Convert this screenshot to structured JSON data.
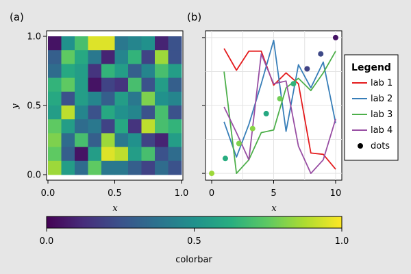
{
  "chart_data": [
    {
      "panel": "(a)",
      "type": "heatmap",
      "xlabel": "x",
      "ylabel": "y",
      "xlim": [
        0,
        1
      ],
      "ylim": [
        0,
        1
      ],
      "x_ticks": [
        "0.0",
        "0.5",
        "1.0"
      ],
      "y_ticks": [
        "0.0",
        "0.5",
        "1.0"
      ],
      "grid": false,
      "rows_top_to_bottom": [
        [
          0.05,
          0.5,
          0.7,
          0.95,
          0.95,
          0.4,
          0.45,
          0.5,
          0.1,
          0.25
        ],
        [
          0.3,
          0.75,
          0.6,
          0.4,
          0.1,
          0.45,
          0.65,
          0.2,
          0.85,
          0.25
        ],
        [
          0.35,
          0.6,
          0.55,
          0.15,
          0.65,
          0.55,
          0.3,
          0.45,
          0.7,
          0.55
        ],
        [
          0.65,
          0.75,
          0.55,
          0.05,
          0.2,
          0.15,
          0.7,
          0.25,
          0.55,
          0.3
        ],
        [
          0.6,
          0.25,
          0.55,
          0.45,
          0.3,
          0.55,
          0.4,
          0.8,
          0.5,
          0.45
        ],
        [
          0.55,
          0.9,
          0.45,
          0.25,
          0.6,
          0.5,
          0.45,
          0.25,
          0.7,
          0.25
        ],
        [
          0.75,
          0.55,
          0.35,
          0.4,
          0.2,
          0.6,
          0.15,
          0.9,
          0.7,
          0.65
        ],
        [
          0.8,
          0.35,
          0.7,
          0.3,
          0.85,
          0.4,
          0.5,
          0.2,
          0.1,
          0.55
        ],
        [
          0.75,
          0.3,
          0.05,
          0.55,
          0.95,
          0.9,
          0.55,
          0.7,
          0.25,
          0.35
        ],
        [
          0.85,
          0.55,
          0.35,
          0.75,
          0.4,
          0.4,
          0.3,
          0.2,
          0.35,
          0.25
        ]
      ],
      "colormap": "viridis"
    },
    {
      "panel": "(b)",
      "type": "line",
      "xlabel": "x",
      "xlim": [
        -0.5,
        10.5
      ],
      "ylim": [
        -0.5,
        10.5
      ],
      "x_ticks": [
        "0",
        "5",
        "10"
      ],
      "grid": true,
      "legend": {
        "title": "Legend",
        "position": "right"
      },
      "series": [
        {
          "name": "lab 1",
          "color": "#e41a1c",
          "x": [
            1,
            2,
            3,
            4,
            5,
            6,
            7,
            8,
            9,
            10
          ],
          "y": [
            9.2,
            7.6,
            9.0,
            9.0,
            6.5,
            7.4,
            6.6,
            1.5,
            1.4,
            0.3
          ]
        },
        {
          "name": "lab 2",
          "color": "#377eb8",
          "x": [
            1,
            2,
            3,
            4,
            5,
            6,
            7,
            8,
            9,
            10
          ],
          "y": [
            3.8,
            1.2,
            3.6,
            6.6,
            9.8,
            3.1,
            8.0,
            6.3,
            8.2,
            3.7
          ]
        },
        {
          "name": "lab 3",
          "color": "#4daf4a",
          "x": [
            1,
            2,
            3,
            4,
            5,
            6,
            7,
            8,
            9,
            10
          ],
          "y": [
            7.5,
            0.0,
            1.0,
            3.0,
            3.2,
            6.3,
            7.0,
            6.1,
            7.4,
            9.0
          ]
        },
        {
          "name": "lab 4",
          "color": "#984ea3",
          "x": [
            1,
            2,
            3,
            4,
            5,
            6,
            7,
            8,
            9,
            10
          ],
          "y": [
            4.9,
            3.0,
            1.0,
            8.8,
            6.6,
            6.8,
            2.0,
            0.0,
            1.0,
            4.0
          ]
        },
        {
          "name": "dots",
          "type": "scatter",
          "color": "#000000",
          "x": [
            0.0,
            1.1,
            2.2,
            3.3,
            4.4,
            5.5,
            6.6,
            7.7,
            8.8,
            10.0
          ],
          "y": [
            0.0,
            1.1,
            2.2,
            3.3,
            4.4,
            5.5,
            6.6,
            7.7,
            8.8,
            10.0
          ],
          "color_values": [
            0.85,
            0.62,
            0.8,
            0.82,
            0.6,
            0.78,
            0.65,
            0.2,
            0.22,
            0.05
          ]
        }
      ]
    },
    {
      "type": "colorbar",
      "label": "colorbar",
      "range": [
        0,
        1
      ],
      "ticks": [
        "0.0",
        "0.5",
        "1.0"
      ],
      "colormap": "viridis"
    }
  ]
}
